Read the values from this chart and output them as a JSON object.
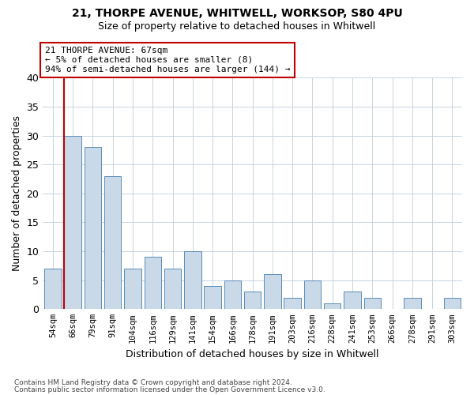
{
  "title1": "21, THORPE AVENUE, WHITWELL, WORKSOP, S80 4PU",
  "title2": "Size of property relative to detached houses in Whitwell",
  "xlabel": "Distribution of detached houses by size in Whitwell",
  "ylabel": "Number of detached properties",
  "categories": [
    "54sqm",
    "66sqm",
    "79sqm",
    "91sqm",
    "104sqm",
    "116sqm",
    "129sqm",
    "141sqm",
    "154sqm",
    "166sqm",
    "178sqm",
    "191sqm",
    "203sqm",
    "216sqm",
    "228sqm",
    "241sqm",
    "253sqm",
    "266sqm",
    "278sqm",
    "291sqm",
    "303sqm"
  ],
  "values": [
    7,
    30,
    28,
    23,
    7,
    9,
    7,
    10,
    4,
    5,
    3,
    6,
    2,
    5,
    1,
    3,
    2,
    0,
    2,
    0,
    2
  ],
  "bar_color": "#c9d9e8",
  "bar_edge_color": "#5b8db8",
  "vline_color": "#c00000",
  "vline_bar_index": 1,
  "annotation_title": "21 THORPE AVENUE: 67sqm",
  "annotation_line1": "← 5% of detached houses are smaller (8)",
  "annotation_line2": "94% of semi-detached houses are larger (144) →",
  "annotation_box_edge_color": "#c00000",
  "ylim": [
    0,
    40
  ],
  "yticks": [
    0,
    5,
    10,
    15,
    20,
    25,
    30,
    35,
    40
  ],
  "footer1": "Contains HM Land Registry data © Crown copyright and database right 2024.",
  "footer2": "Contains public sector information licensed under the Open Government Licence v3.0.",
  "background_color": "#ffffff",
  "grid_color": "#c8d4e0"
}
